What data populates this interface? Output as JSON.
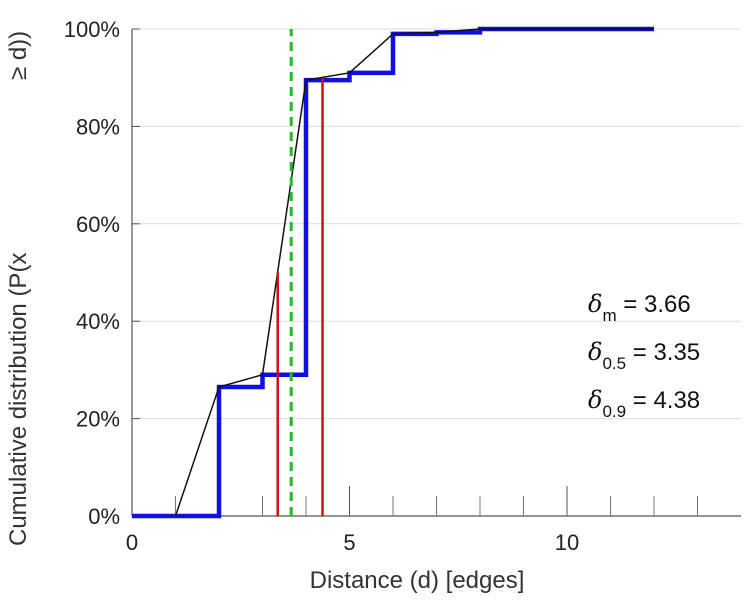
{
  "chart_data": {
    "type": "line",
    "xlabel": "Distance (d) [edges]",
    "ylabel_main": "Cumulative distribution (P(x",
    "ylabel_tail": "≥ d))",
    "xlim": [
      0,
      14
    ],
    "ylim": [
      0,
      100
    ],
    "x_ticks": [
      0,
      5,
      10
    ],
    "x_tick_labels": [
      "0",
      "5",
      "10"
    ],
    "x_minor_ticks": [
      1,
      2,
      3,
      4,
      6,
      7,
      8,
      9,
      11,
      12,
      13
    ],
    "y_ticks": [
      0,
      20,
      40,
      60,
      80,
      100
    ],
    "y_tick_labels": [
      "0%",
      "20%",
      "40%",
      "60%",
      "80%",
      "100%"
    ],
    "grid": "horizontal",
    "series": [
      {
        "style": "step",
        "color": "#1010e0",
        "points": [
          [
            0,
            0
          ],
          [
            2,
            0
          ],
          [
            2,
            26.5
          ],
          [
            3,
            26.5
          ],
          [
            3,
            29
          ],
          [
            4,
            29
          ],
          [
            4,
            89.5
          ],
          [
            5,
            89.5
          ],
          [
            5,
            91
          ],
          [
            6,
            91
          ],
          [
            6,
            99
          ],
          [
            7,
            99
          ],
          [
            7,
            99.3
          ],
          [
            8,
            99.3
          ],
          [
            8,
            100
          ],
          [
            12,
            100
          ]
        ]
      },
      {
        "style": "line",
        "color": "#111111",
        "points": [
          [
            1,
            0
          ],
          [
            2,
            26.5
          ],
          [
            3,
            29
          ],
          [
            4,
            89.5
          ],
          [
            5,
            91
          ],
          [
            6,
            99
          ],
          [
            7,
            99.3
          ],
          [
            8,
            100
          ],
          [
            12,
            100
          ]
        ]
      }
    ],
    "vlines": [
      {
        "x": 3.35,
        "y_top": 50,
        "color": "#cc1111",
        "style": "solid"
      },
      {
        "x": 4.38,
        "y_top": 90,
        "color": "#cc1111",
        "style": "solid"
      },
      {
        "x": 3.66,
        "y_top": 100,
        "color": "#22bb22",
        "style": "dashed"
      }
    ],
    "annotations": [
      {
        "symbol": "δ",
        "sub": "m",
        "text": " = 3.66"
      },
      {
        "symbol": "δ",
        "sub": "0.5",
        "text": " = 3.35"
      },
      {
        "symbol": "δ",
        "sub": "0.9",
        "text": " = 4.38"
      }
    ]
  }
}
